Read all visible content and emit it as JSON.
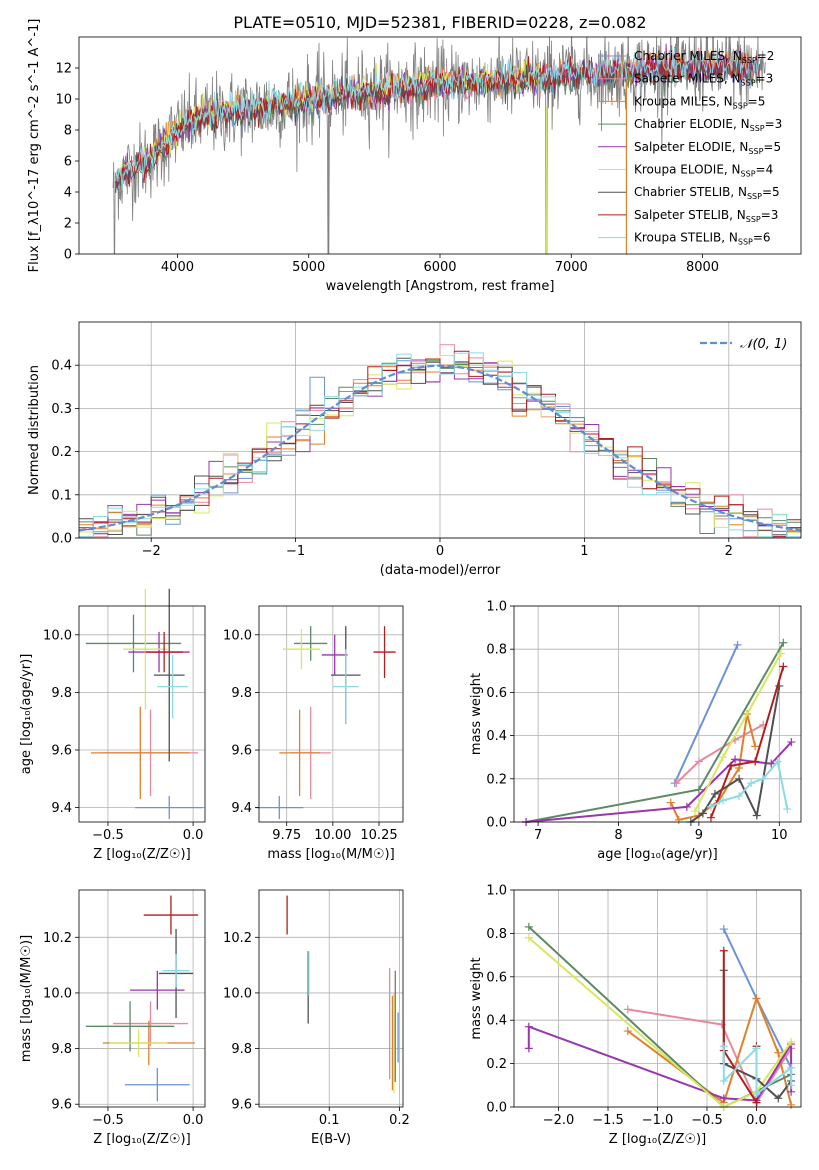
{
  "figure": {
    "title": "PLATE=0510, MJD=52381, FIBERID=0228, z=0.082"
  },
  "chart_data": [
    {
      "id": "spectrum",
      "type": "line",
      "xlabel": "wavelength [Angstrom, rest frame]",
      "ylabel": "Flux [f_λ10^-17 erg cm^-2 s^-1 A^-1]",
      "xlim": [
        3250,
        8750
      ],
      "ylim": [
        0,
        14
      ],
      "xticks": [
        4000,
        5000,
        6000,
        7000,
        8000
      ],
      "yticks": [
        0,
        2,
        4,
        6,
        8,
        10,
        12
      ],
      "grid": false,
      "legend_position": "top-right",
      "series": [
        {
          "name": "Chabrier MILES, N_SSP=2",
          "color": "#6c93d6",
          "marker": "none"
        },
        {
          "name": "Salpeter MILES, N_SSP=3",
          "color": "#e8889c",
          "marker": "none"
        },
        {
          "name": "Kroupa MILES, N_SSP=5",
          "color": "#e0802a",
          "marker": "plus"
        },
        {
          "name": "Chabrier ELODIE, N_SSP=3",
          "color": "#5c8a64",
          "marker": "none"
        },
        {
          "name": "Salpeter ELODIE, N_SSP=5",
          "color": "#9a35b0",
          "marker": "none"
        },
        {
          "name": "Kroupa ELODIE, N_SSP=4",
          "color": "#d7e85c",
          "marker": "none"
        },
        {
          "name": "Chabrier STELIB, N_SSP=5",
          "color": "#505050",
          "marker": "none"
        },
        {
          "name": "Salpeter STELIB, N_SSP=3",
          "color": "#b41c1c",
          "marker": "none"
        },
        {
          "name": "Kroupa STELIB, N_SSP=6",
          "color": "#8adbe6",
          "marker": "none"
        }
      ],
      "trend": {
        "x": [
          3500,
          3600,
          3700,
          3800,
          3900,
          4000,
          4100,
          4200,
          4300,
          4400,
          4500,
          4600,
          4700,
          4800,
          4900,
          5000,
          5200,
          5400,
          5600,
          5800,
          6000,
          6200,
          6400,
          6600,
          6800,
          7000,
          7200,
          7400,
          7600,
          7800,
          8000,
          8200,
          8400
        ],
        "y": [
          4.6,
          5.2,
          5.8,
          6.2,
          7.0,
          8.0,
          8.5,
          8.8,
          9.0,
          9.2,
          9.3,
          9.4,
          9.6,
          9.7,
          9.8,
          10.0,
          10.2,
          10.5,
          10.6,
          10.8,
          10.9,
          11.0,
          11.2,
          11.2,
          11.4,
          11.6,
          11.6,
          11.8,
          11.9,
          12.0,
          12.1,
          12.0,
          12.0
        ]
      }
    },
    {
      "id": "residuals",
      "type": "histogram",
      "xlabel": "(data-model)/error",
      "ylabel": "Normed distribution",
      "xlim": [
        -2.5,
        2.5
      ],
      "ylim": [
        0,
        0.5
      ],
      "xticks": [
        -2,
        -1,
        0,
        1,
        2
      ],
      "yticks": [
        0.0,
        0.1,
        0.2,
        0.3,
        0.4
      ],
      "grid": true,
      "legend_position": "top-right",
      "reference_curve": {
        "name": "𝒩(0, 1)",
        "color": "#5b8ed6",
        "style": "dashed"
      },
      "bin_width": 0.1
    },
    {
      "id": "age-vs-z",
      "type": "scatter",
      "xlabel": "Z [log₁₀(Z/Z☉)]",
      "ylabel": "age  [log₁₀(age/yr)]",
      "xlim": [
        -0.67,
        0.07
      ],
      "ylim": [
        9.35,
        10.1
      ],
      "xticks": [
        -0.5,
        0.0
      ],
      "yticks": [
        9.4,
        9.6,
        9.8,
        10.0
      ],
      "grid": true,
      "points": [
        {
          "x": -0.14,
          "y": 9.4,
          "xerr": 0.2,
          "yerr": 0.04,
          "color": "#6c93d6"
        },
        {
          "x": -0.25,
          "y": 9.59,
          "xerr": 0.28,
          "yerr": 0.15,
          "color": "#e8889c"
        },
        {
          "x": -0.31,
          "y": 9.59,
          "xerr": 0.29,
          "yerr": 0.16,
          "color": "#e0802a"
        },
        {
          "x": -0.35,
          "y": 9.97,
          "xerr": 0.28,
          "yerr": 0.1,
          "color": "#5c8a64"
        },
        {
          "x": -0.2,
          "y": 9.94,
          "xerr": 0.18,
          "yerr": 0.07,
          "color": "#9a35b0"
        },
        {
          "x": -0.28,
          "y": 9.95,
          "xerr": 0.13,
          "yerr": 0.21,
          "color": "#d7e85c"
        },
        {
          "x": -0.14,
          "y": 9.86,
          "xerr": 0.09,
          "yerr": 0.3,
          "color": "#505050"
        },
        {
          "x": -0.17,
          "y": 9.94,
          "xerr": 0.11,
          "yerr": 0.07,
          "color": "#b41c1c"
        },
        {
          "x": -0.12,
          "y": 9.82,
          "xerr": 0.09,
          "yerr": 0.11,
          "color": "#8adbe6"
        }
      ]
    },
    {
      "id": "age-vs-mass",
      "type": "scatter",
      "xlabel": "mass [log₁₀(M/M☉)]",
      "ylabel": "",
      "xlim": [
        9.6,
        10.38
      ],
      "ylim": [
        9.35,
        10.1
      ],
      "xticks": [
        9.75,
        10.0,
        10.25
      ],
      "yticks": [
        9.4,
        9.6,
        9.8,
        10.0
      ],
      "grid": true,
      "points": [
        {
          "x": 9.71,
          "y": 9.4,
          "xerr": 0.13,
          "yerr": 0.04,
          "color": "#6c93d6"
        },
        {
          "x": 9.88,
          "y": 9.59,
          "xerr": 0.11,
          "yerr": 0.16,
          "color": "#e8889c"
        },
        {
          "x": 9.82,
          "y": 9.59,
          "xerr": 0.11,
          "yerr": 0.15,
          "color": "#e0802a"
        },
        {
          "x": 9.88,
          "y": 9.97,
          "xerr": 0.09,
          "yerr": 0.06,
          "color": "#5c8a64"
        },
        {
          "x": 10.01,
          "y": 9.93,
          "xerr": 0.07,
          "yerr": 0.07,
          "color": "#9a35b0"
        },
        {
          "x": 9.83,
          "y": 9.95,
          "xerr": 0.1,
          "yerr": 0.07,
          "color": "#d7e85c"
        },
        {
          "x": 10.07,
          "y": 9.86,
          "xerr": 0.08,
          "yerr": 0.17,
          "color": "#505050"
        },
        {
          "x": 10.28,
          "y": 9.94,
          "xerr": 0.06,
          "yerr": 0.09,
          "color": "#b41c1c"
        },
        {
          "x": 10.07,
          "y": 9.82,
          "xerr": 0.07,
          "yerr": 0.13,
          "color": "#8adbe6"
        }
      ]
    },
    {
      "id": "mass-weight-vs-age",
      "type": "line",
      "xlabel": "age  [log₁₀(age/yr)]",
      "ylabel": "mass weight",
      "xlim": [
        6.7,
        10.27
      ],
      "ylim": [
        0,
        1
      ],
      "xticks": [
        7,
        8,
        9,
        10
      ],
      "yticks": [
        0.0,
        0.2,
        0.4,
        0.6,
        0.8,
        1.0
      ],
      "grid": true,
      "series": [
        {
          "color": "#6c93d6",
          "x": [
            8.7,
            9.48
          ],
          "y": [
            0.18,
            0.82
          ]
        },
        {
          "color": "#e8889c",
          "x": [
            8.72,
            9.0,
            9.45,
            9.8
          ],
          "y": [
            0.18,
            0.28,
            0.38,
            0.45
          ]
        },
        {
          "color": "#e0802a",
          "x": [
            8.65,
            8.75,
            9.0,
            9.25,
            9.5,
            9.6,
            9.7
          ],
          "y": [
            0.09,
            0.01,
            0.03,
            0.1,
            0.25,
            0.5,
            0.35
          ]
        },
        {
          "color": "#5c8a64",
          "x": [
            6.85,
            9.0,
            10.05
          ],
          "y": [
            0.0,
            0.15,
            0.83
          ]
        },
        {
          "color": "#9a35b0",
          "x": [
            6.85,
            8.85,
            9.45,
            9.9,
            10.15
          ],
          "y": [
            0.0,
            0.07,
            0.29,
            0.27,
            0.37
          ]
        },
        {
          "color": "#d7e85c",
          "x": [
            8.95,
            9.3,
            10.02
          ],
          "y": [
            0.05,
            0.3,
            0.78
          ]
        },
        {
          "color": "#505050",
          "x": [
            8.9,
            9.05,
            9.2,
            9.5,
            9.72,
            10.0
          ],
          "y": [
            0.0,
            0.04,
            0.13,
            0.2,
            0.03,
            0.63
          ]
        },
        {
          "color": "#b41c1c",
          "x": [
            9.15,
            9.4,
            9.7,
            10.05
          ],
          "y": [
            0.02,
            0.26,
            0.28,
            0.72
          ]
        },
        {
          "color": "#8adbe6",
          "x": [
            9.15,
            9.3,
            9.5,
            9.65,
            9.8,
            9.98,
            10.1
          ],
          "y": [
            0.07,
            0.1,
            0.12,
            0.18,
            0.2,
            0.28,
            0.06
          ]
        }
      ]
    },
    {
      "id": "mass-vs-z",
      "type": "scatter",
      "xlabel": "Z [log₁₀(Z/Z☉)]",
      "ylabel": "mass [log₁₀(M/M☉)]",
      "xlim": [
        -0.67,
        0.07
      ],
      "ylim": [
        9.59,
        10.37
      ],
      "xticks": [
        -0.5,
        0.0
      ],
      "yticks": [
        9.6,
        9.8,
        10.0,
        10.2
      ],
      "grid": true,
      "points": [
        {
          "x": -0.21,
          "y": 9.67,
          "xerr": 0.19,
          "yerr": 0.06,
          "color": "#6c93d6"
        },
        {
          "x": -0.25,
          "y": 9.89,
          "xerr": 0.22,
          "yerr": 0.08,
          "color": "#e8889c"
        },
        {
          "x": -0.26,
          "y": 9.82,
          "xerr": 0.27,
          "yerr": 0.08,
          "color": "#e0802a"
        },
        {
          "x": -0.37,
          "y": 9.88,
          "xerr": 0.26,
          "yerr": 0.09,
          "color": "#5c8a64"
        },
        {
          "x": -0.21,
          "y": 10.01,
          "xerr": 0.16,
          "yerr": 0.07,
          "color": "#9a35b0"
        },
        {
          "x": -0.32,
          "y": 9.82,
          "xerr": 0.17,
          "yerr": 0.05,
          "color": "#d7e85c"
        },
        {
          "x": -0.1,
          "y": 10.07,
          "xerr": 0.1,
          "yerr": 0.16,
          "color": "#505050"
        },
        {
          "x": -0.13,
          "y": 10.28,
          "xerr": 0.16,
          "yerr": 0.07,
          "color": "#b41c1c"
        },
        {
          "x": -0.1,
          "y": 10.08,
          "xerr": 0.08,
          "yerr": 0.06,
          "color": "#8adbe6"
        }
      ]
    },
    {
      "id": "mass-vs-ebv",
      "type": "scatter",
      "xlabel": "E(B-V)",
      "ylabel": "",
      "xlim": [
        0.0,
        0.205
      ],
      "ylim": [
        9.59,
        10.37
      ],
      "xticks": [
        0.1,
        0.2
      ],
      "yticks": [
        9.6,
        9.8,
        10.0,
        10.2
      ],
      "grid": true,
      "points": [
        {
          "x": 0.04,
          "y": 10.28,
          "yerr": 0.07,
          "color": "#b41c1c"
        },
        {
          "x": 0.07,
          "y": 10.02,
          "yerr": 0.13,
          "color": "#505050"
        },
        {
          "x": 0.071,
          "y": 10.07,
          "yerr": 0.08,
          "color": "#8adbe6"
        },
        {
          "x": 0.186,
          "y": 9.89,
          "yerr": 0.2,
          "color": "#e8889c"
        },
        {
          "x": 0.19,
          "y": 9.82,
          "yerr": 0.17,
          "color": "#e0802a"
        },
        {
          "x": 0.192,
          "y": 9.82,
          "yerr": 0.18,
          "color": "#d7e85c"
        },
        {
          "x": 0.194,
          "y": 9.88,
          "yerr": 0.2,
          "color": "#5c8a64"
        },
        {
          "x": 0.198,
          "y": 9.84,
          "yerr": 0.09,
          "color": "#6c93d6"
        }
      ]
    },
    {
      "id": "mass-weight-vs-z",
      "type": "line",
      "xlabel": "Z [log₁₀(Z/Z☉)]",
      "ylabel": "mass weight",
      "xlim": [
        -2.45,
        0.45
      ],
      "ylim": [
        0,
        1
      ],
      "xticks": [
        -2.0,
        -1.5,
        -1.0,
        -0.5,
        0.0
      ],
      "yticks": [
        0.0,
        0.2,
        0.4,
        0.6,
        0.8,
        1.0
      ],
      "grid": true,
      "series": [
        {
          "color": "#6c93d6",
          "x": [
            -0.33,
            0.0,
            0.35
          ],
          "y": [
            0.82,
            0.5,
            0.18
          ]
        },
        {
          "color": "#e8889c",
          "x": [
            -1.3,
            -0.35,
            0.0,
            0.35
          ],
          "y": [
            0.45,
            0.38,
            0.02,
            0.27
          ]
        },
        {
          "color": "#e0802a",
          "x": [
            -1.3,
            -0.33,
            0.0,
            0.22,
            0.35
          ],
          "y": [
            0.35,
            0.02,
            0.5,
            0.25,
            0.01
          ]
        },
        {
          "color": "#5c8a64",
          "x": [
            -2.3,
            -0.33,
            0.35
          ],
          "y": [
            0.83,
            0.0,
            0.15
          ]
        },
        {
          "color": "#9a35b0",
          "x": [
            -2.3,
            -2.3,
            -0.33,
            0.0,
            0.35,
            0.35
          ],
          "y": [
            0.27,
            0.37,
            0.04,
            0.03,
            0.29,
            0.07
          ]
        },
        {
          "color": "#d7e85c",
          "x": [
            -2.3,
            -0.33,
            0.0,
            0.35
          ],
          "y": [
            0.78,
            0.0,
            0.07,
            0.3
          ]
        },
        {
          "color": "#505050",
          "x": [
            -0.33,
            -0.33,
            0.0,
            0.22,
            0.35
          ],
          "y": [
            0.63,
            0.2,
            0.13,
            0.04,
            0.12
          ]
        },
        {
          "color": "#b41c1c",
          "x": [
            -0.33,
            -0.33,
            0.0,
            0.0
          ],
          "y": [
            0.72,
            0.26,
            0.02,
            0.28
          ]
        },
        {
          "color": "#8adbe6",
          "x": [
            -0.33,
            -0.33,
            0.0,
            0.0,
            0.35,
            0.35
          ],
          "y": [
            0.28,
            0.12,
            0.27,
            0.06,
            0.18,
            0.1
          ]
        }
      ]
    }
  ]
}
